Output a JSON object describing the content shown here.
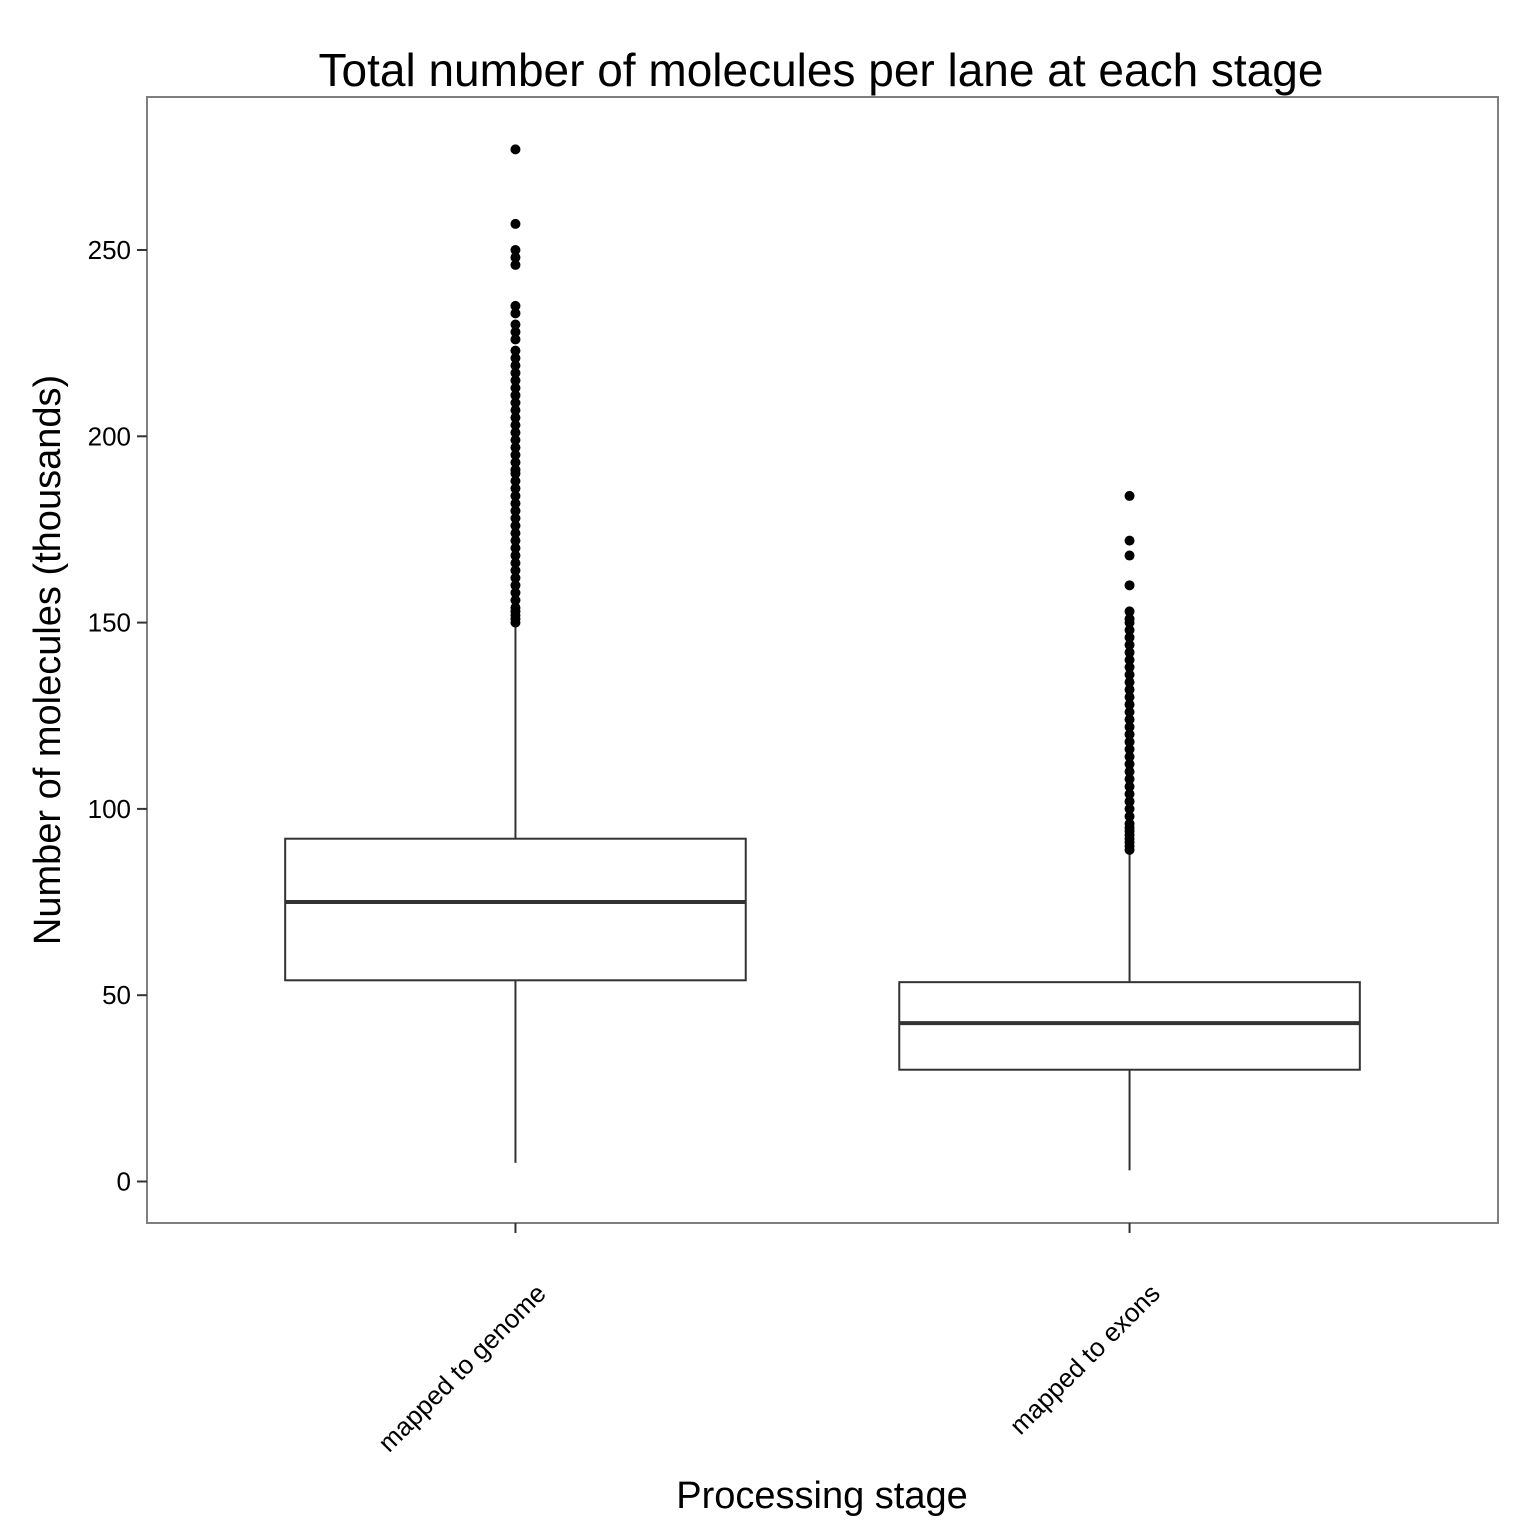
{
  "chart_data": {
    "type": "boxplot",
    "title": "Total number of molecules per lane at each stage",
    "xlabel": "Processing stage",
    "ylabel": "Number of molecules (thousands)",
    "ylim": [
      -11,
      291
    ],
    "yticks": [
      0,
      50,
      100,
      150,
      200,
      250
    ],
    "grid": false,
    "categories": [
      "mapped to genome",
      "mapped to exons"
    ],
    "boxes": [
      {
        "category": "mapped to genome",
        "whisker_low": 5,
        "q1": 54,
        "median": 75,
        "q3": 92,
        "whisker_high": 149,
        "outliers": [
          150,
          151,
          152,
          153,
          154,
          156,
          158,
          160,
          162,
          164,
          166,
          168,
          170,
          172,
          174,
          176,
          178,
          180,
          182,
          184,
          186,
          188,
          190,
          191,
          193,
          195,
          197,
          199,
          201,
          203,
          205,
          207,
          209,
          211,
          213,
          215,
          217,
          219,
          221,
          223,
          226,
          228,
          230,
          233,
          235,
          246,
          248,
          250,
          257,
          277
        ]
      },
      {
        "category": "mapped to exons",
        "whisker_low": 3,
        "q1": 30,
        "median": 42.5,
        "q3": 53.5,
        "whisker_high": 88,
        "outliers": [
          89,
          90,
          91,
          92,
          93,
          94,
          95,
          96,
          98,
          100,
          102,
          104,
          106,
          108,
          110,
          112,
          114,
          116,
          118,
          120,
          122,
          124,
          126,
          128,
          130,
          132,
          134,
          136,
          138,
          140,
          142,
          144,
          146,
          148,
          150,
          151,
          153,
          160,
          168,
          172,
          184
        ]
      }
    ],
    "colors": {
      "box_stroke": "#333333",
      "median": "#333333",
      "point": "#000000",
      "frame": "#7f7f7f"
    }
  }
}
